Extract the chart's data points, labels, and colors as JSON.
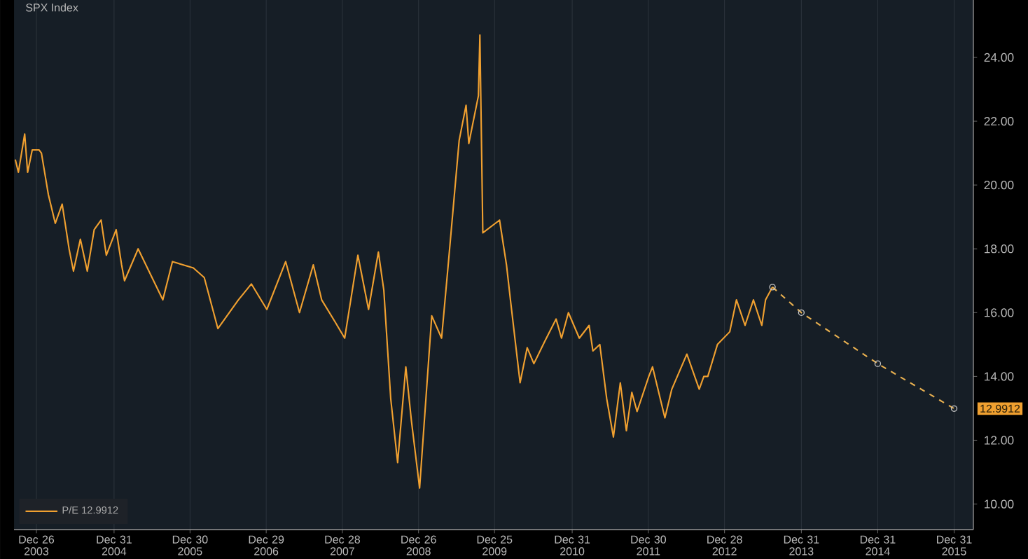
{
  "chart_data": {
    "type": "line",
    "title": "SPX Index",
    "xlim": [
      "2003-09-10",
      "2016-04-01"
    ],
    "ylim": [
      9.2,
      25.8
    ],
    "xticks": [
      {
        "value": "2003-12-26",
        "label": "Dec 26 2003"
      },
      {
        "value": "2004-12-31",
        "label": "Dec 31 2004"
      },
      {
        "value": "2005-12-30",
        "label": "Dec 30 2005"
      },
      {
        "value": "2006-12-29",
        "label": "Dec 29 2006"
      },
      {
        "value": "2007-12-28",
        "label": "Dec 28 2007"
      },
      {
        "value": "2008-12-26",
        "label": "Dec 26 2008"
      },
      {
        "value": "2009-12-25",
        "label": "Dec 25 2009"
      },
      {
        "value": "2010-12-31",
        "label": "Dec 31 2010"
      },
      {
        "value": "2011-12-30",
        "label": "Dec 30 2011"
      },
      {
        "value": "2012-12-28",
        "label": "Dec 28 2012"
      },
      {
        "value": "2013-12-31",
        "label": "Dec 31 2013"
      },
      {
        "value": "2014-12-31",
        "label": "Dec 31 2014"
      },
      {
        "value": "2015-12-31",
        "label": "Dec 31 2015"
      }
    ],
    "yticks": [
      {
        "value": 10,
        "label": "10.00"
      },
      {
        "value": 12,
        "label": "12.00"
      },
      {
        "value": 14,
        "label": "14.00"
      },
      {
        "value": 16,
        "label": "16.00"
      },
      {
        "value": 18,
        "label": "18.00"
      },
      {
        "value": 20,
        "label": "20.00"
      },
      {
        "value": 22,
        "label": "22.00"
      },
      {
        "value": 24,
        "label": "24.00"
      }
    ],
    "grid": "x",
    "legend": "bottom left",
    "series": [
      {
        "name": "P/E 12.9912",
        "color": "#f0a030",
        "marker": "none",
        "line_style": "solid",
        "x": [
          "2003-09-16",
          "2003-10-01",
          "2003-10-31",
          "2003-11-14",
          "2003-12-06",
          "2004-01-08",
          "2004-01-19",
          "2004-02-21",
          "2004-03-25",
          "2004-04-27",
          "2004-05-30",
          "2004-06-20",
          "2004-07-23",
          "2004-08-25",
          "2004-09-27",
          "2004-10-30",
          "2004-11-24",
          "2005-01-11",
          "2005-02-06",
          "2005-02-20",
          "2005-04-26",
          "2005-08-22",
          "2005-10-07",
          "2006-01-15",
          "2006-03-08",
          "2006-05-12",
          "2006-08-18",
          "2006-10-19",
          "2007-01-01",
          "2007-04-01",
          "2007-06-06",
          "2007-08-11",
          "2007-09-20",
          "2007-11-24",
          "2008-01-08",
          "2008-03-11",
          "2008-05-01",
          "2008-06-17",
          "2008-07-13",
          "2008-08-15",
          "2008-09-17",
          "2008-10-26",
          "2008-11-22",
          "2009-01-01",
          "2009-02-28",
          "2009-04-16",
          "2009-05-19",
          "2009-07-09",
          "2009-08-11",
          "2009-08-24",
          "2009-10-09",
          "2009-10-16",
          "2009-10-30",
          "2010-01-18",
          "2010-02-20",
          "2010-03-11",
          "2010-04-26",
          "2010-05-30",
          "2010-07-01",
          "2010-08-22",
          "2010-10-15",
          "2010-11-10",
          "2010-12-13",
          "2011-02-03",
          "2011-03-22",
          "2011-04-09",
          "2011-05-12",
          "2011-06-14",
          "2011-07-16",
          "2011-08-18",
          "2011-09-16",
          "2011-10-12",
          "2011-11-06",
          "2012-01-01",
          "2012-01-19",
          "2012-03-18",
          "2012-04-20",
          "2012-07-01",
          "2012-08-29",
          "2012-09-20",
          "2012-10-09",
          "2012-11-24",
          "2013-01-23",
          "2013-02-24",
          "2013-04-06",
          "2013-05-16",
          "2013-06-25",
          "2013-07-13",
          "2013-08-15"
        ],
        "values": [
          20.8,
          20.4,
          21.6,
          20.4,
          21.1,
          21.1,
          21.0,
          19.7,
          18.8,
          19.4,
          18.0,
          17.3,
          18.3,
          17.3,
          18.6,
          18.9,
          17.8,
          18.6,
          17.5,
          17.0,
          18.0,
          16.4,
          17.6,
          17.4,
          17.1,
          15.5,
          16.4,
          16.9,
          16.1,
          17.6,
          16.0,
          17.5,
          16.4,
          15.7,
          15.2,
          17.8,
          16.1,
          17.9,
          16.7,
          13.3,
          11.3,
          14.3,
          12.6,
          10.5,
          15.9,
          15.2,
          17.6,
          21.4,
          22.5,
          21.3,
          22.8,
          24.7,
          18.5,
          18.9,
          17.5,
          16.4,
          13.8,
          14.9,
          14.4,
          15.1,
          15.8,
          15.2,
          16.0,
          15.2,
          15.6,
          14.8,
          15.0,
          13.3,
          12.1,
          13.8,
          12.3,
          13.5,
          12.9,
          14.0,
          14.3,
          12.7,
          13.6,
          14.7,
          13.6,
          14.0,
          14.0,
          15.0,
          15.4,
          16.4,
          15.6,
          16.4,
          15.6,
          16.4,
          16.8
        ]
      },
      {
        "color": "#e8b050",
        "marker": "circle",
        "line_style": "dashed",
        "x": [
          "2013-08-15",
          "2013-12-31",
          "2014-12-31",
          "2015-12-31"
        ],
        "values": [
          16.8,
          16.0,
          14.4,
          12.9912
        ]
      }
    ],
    "annotations": [
      "12.9912"
    ]
  }
}
